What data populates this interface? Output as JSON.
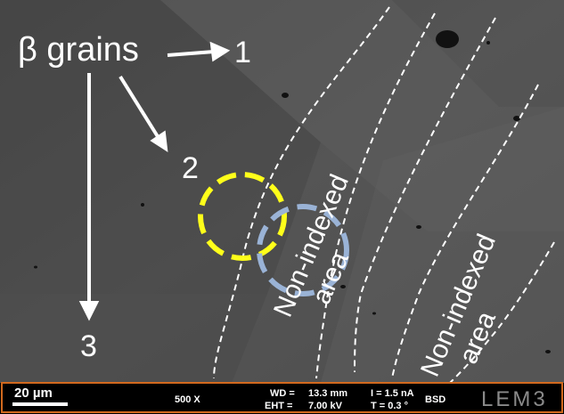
{
  "labels": {
    "beta_grains": "β grains",
    "grain_1": "1",
    "grain_2": "2",
    "grain_3": "3",
    "non_indexed_a_line1": "Non-indexed",
    "non_indexed_a_line2": "area",
    "non_indexed_b_line1": "Non-indexed",
    "non_indexed_b_line2": "area"
  },
  "info_bar": {
    "scale": "20 µm",
    "magnification": "500 X",
    "wd_label": "WD =",
    "wd_value": "13.3 mm",
    "current": "I = 1.5 nA",
    "eht_label": "EHT =",
    "eht_value": "7.00 kV",
    "tilt": "T = 0.3 °",
    "detector": "BSD",
    "logo": "LEM3"
  },
  "colors": {
    "yellow_circle": "#ffff1a",
    "blue_circle": "#9ab3d6",
    "bar_border": "#d2691e"
  }
}
